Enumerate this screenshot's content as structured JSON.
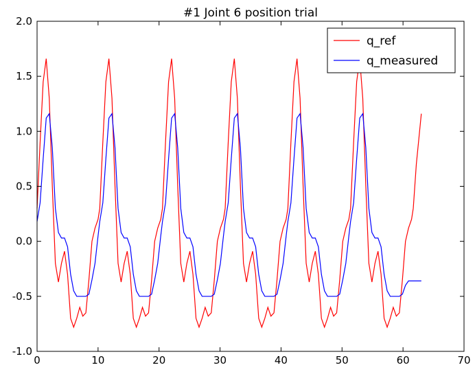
{
  "chart_data": {
    "type": "line",
    "title": "#1 Joint 6 position trial",
    "x": [
      0,
      0.5,
      1,
      1.5,
      2,
      2.5,
      3,
      3.5,
      4,
      4.5,
      5,
      5.5,
      6,
      6.5,
      7,
      7.5,
      8,
      8.5,
      9,
      9.5,
      10,
      10.28,
      10.78,
      11.28,
      11.78,
      12.28,
      12.78,
      13.28,
      13.78,
      14.28,
      14.78,
      15.28,
      15.78,
      16.28,
      16.78,
      17.28,
      17.78,
      18.28,
      18.78,
      19.28,
      19.78,
      20.28,
      20.56,
      21.06,
      21.56,
      22.06,
      22.56,
      23.06,
      23.56,
      24.06,
      24.56,
      25.06,
      25.56,
      26.06,
      26.56,
      27.06,
      27.56,
      28.06,
      28.56,
      29.06,
      29.56,
      30.06,
      30.56,
      30.84,
      31.34,
      31.84,
      32.34,
      32.84,
      33.34,
      33.84,
      34.34,
      34.84,
      35.34,
      35.84,
      36.34,
      36.84,
      37.34,
      37.84,
      38.34,
      38.84,
      39.34,
      39.84,
      40.34,
      40.84,
      41.12,
      41.62,
      42.12,
      42.62,
      43.12,
      43.62,
      44.12,
      44.62,
      45.12,
      45.62,
      46.12,
      46.62,
      47.12,
      47.62,
      48.12,
      48.62,
      49.12,
      49.62,
      50.12,
      50.62,
      51.12,
      51.4,
      51.9,
      52.4,
      52.9,
      53.4,
      53.9,
      54.4,
      54.9,
      55.4,
      55.9,
      56.4,
      56.9,
      57.4,
      57.9,
      58.4,
      58.9,
      59.4,
      59.9,
      60.4,
      60.9,
      61.4,
      61.68,
      62.18,
      63
    ],
    "series": [
      {
        "name": "q_ref",
        "color": "#ff0000",
        "values": [
          0.3,
          0.9,
          1.45,
          1.66,
          1.3,
          0.5,
          -0.2,
          -0.37,
          -0.2,
          -0.09,
          -0.3,
          -0.7,
          -0.78,
          -0.7,
          -0.6,
          -0.68,
          -0.65,
          -0.35,
          0.0,
          0.12,
          0.2,
          0.3,
          0.9,
          1.45,
          1.66,
          1.3,
          0.5,
          -0.2,
          -0.37,
          -0.2,
          -0.09,
          -0.3,
          -0.7,
          -0.78,
          -0.7,
          -0.6,
          -0.68,
          -0.65,
          -0.35,
          0.0,
          0.12,
          0.2,
          0.3,
          0.9,
          1.45,
          1.66,
          1.3,
          0.5,
          -0.2,
          -0.37,
          -0.2,
          -0.09,
          -0.3,
          -0.7,
          -0.78,
          -0.7,
          -0.6,
          -0.68,
          -0.65,
          -0.35,
          0.0,
          0.12,
          0.2,
          0.3,
          0.9,
          1.45,
          1.66,
          1.3,
          0.5,
          -0.2,
          -0.37,
          -0.2,
          -0.09,
          -0.3,
          -0.7,
          -0.78,
          -0.7,
          -0.6,
          -0.68,
          -0.65,
          -0.35,
          0.0,
          0.12,
          0.2,
          0.3,
          0.9,
          1.45,
          1.66,
          1.3,
          0.5,
          -0.2,
          -0.37,
          -0.2,
          -0.09,
          -0.3,
          -0.7,
          -0.78,
          -0.7,
          -0.6,
          -0.68,
          -0.65,
          -0.35,
          0.0,
          0.12,
          0.2,
          0.3,
          0.9,
          1.45,
          1.66,
          1.3,
          0.5,
          -0.2,
          -0.37,
          -0.2,
          -0.09,
          -0.3,
          -0.7,
          -0.78,
          -0.7,
          -0.6,
          -0.68,
          -0.65,
          -0.35,
          0.0,
          0.12,
          0.2,
          0.3,
          0.7,
          1.16
        ]
      },
      {
        "name": "q_measured",
        "color": "#0000ff",
        "values": [
          0.18,
          0.35,
          0.75,
          1.12,
          1.16,
          0.85,
          0.3,
          0.08,
          0.03,
          0.03,
          -0.05,
          -0.3,
          -0.45,
          -0.5,
          -0.5,
          -0.5,
          -0.5,
          -0.48,
          -0.35,
          -0.2,
          0.05,
          0.18,
          0.35,
          0.75,
          1.12,
          1.16,
          0.85,
          0.3,
          0.08,
          0.03,
          0.03,
          -0.05,
          -0.3,
          -0.45,
          -0.5,
          -0.5,
          -0.5,
          -0.5,
          -0.48,
          -0.35,
          -0.2,
          0.05,
          0.18,
          0.35,
          0.75,
          1.12,
          1.16,
          0.85,
          0.3,
          0.08,
          0.03,
          0.03,
          -0.05,
          -0.3,
          -0.45,
          -0.5,
          -0.5,
          -0.5,
          -0.5,
          -0.48,
          -0.35,
          -0.2,
          0.05,
          0.18,
          0.35,
          0.75,
          1.12,
          1.16,
          0.85,
          0.3,
          0.08,
          0.03,
          0.03,
          -0.05,
          -0.3,
          -0.45,
          -0.5,
          -0.5,
          -0.5,
          -0.5,
          -0.48,
          -0.35,
          -0.2,
          0.05,
          0.18,
          0.35,
          0.75,
          1.12,
          1.16,
          0.85,
          0.3,
          0.08,
          0.03,
          0.03,
          -0.05,
          -0.3,
          -0.45,
          -0.5,
          -0.5,
          -0.5,
          -0.5,
          -0.48,
          -0.35,
          -0.2,
          0.05,
          0.18,
          0.35,
          0.75,
          1.12,
          1.16,
          0.85,
          0.3,
          0.08,
          0.03,
          0.03,
          -0.05,
          -0.3,
          -0.45,
          -0.5,
          -0.5,
          -0.5,
          -0.5,
          -0.48,
          -0.4,
          -0.36,
          -0.36,
          -0.36,
          -0.36,
          -0.36
        ]
      }
    ],
    "xlim": [
      0,
      70
    ],
    "xticks": [
      0,
      10,
      20,
      30,
      40,
      50,
      60,
      70
    ],
    "ylim": [
      -1,
      2
    ],
    "yticks": [
      {
        "value": -1,
        "label": "-1.0"
      },
      -0.5,
      {
        "value": 0,
        "label": "0.0"
      },
      0.5,
      {
        "value": 1,
        "label": "1.0"
      },
      1.5,
      {
        "value": 2,
        "label": "2.0"
      }
    ],
    "legend": "upper right"
  }
}
